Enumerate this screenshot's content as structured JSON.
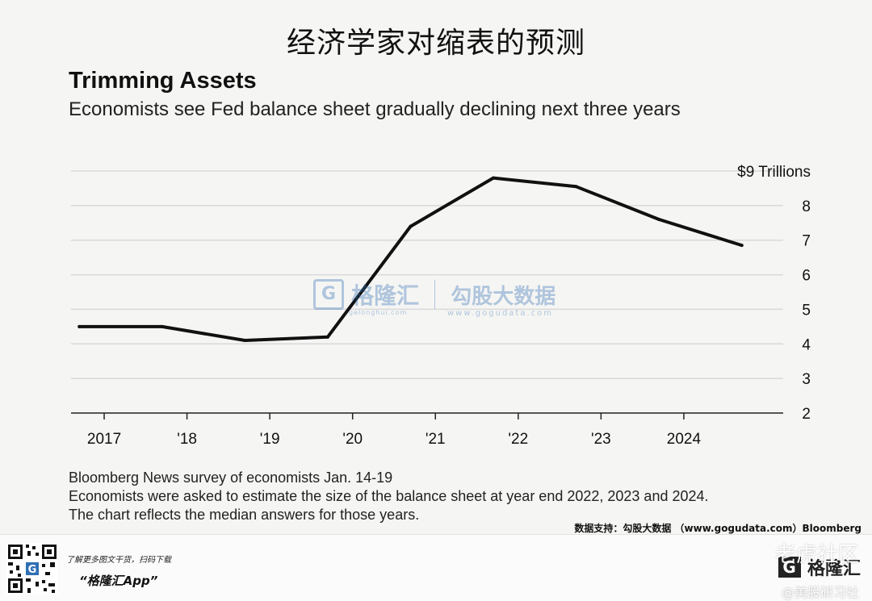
{
  "header": {
    "title": "经济学家对缩表的预测"
  },
  "chart": {
    "title": "Trimming Assets",
    "subtitle": "Economists see Fed balance sheet gradually declining next three years",
    "top_tick_label": "$9 Trillions",
    "notes": [
      "Bloomberg News survey of economists Jan. 14-19",
      "Economists were asked to estimate the size of the balance sheet at year end 2022, 2023 and 2024.",
      "The chart reflects the median answers for those years."
    ]
  },
  "chart_data": {
    "type": "line",
    "title": "Trimming Assets",
    "subtitle": "Economists see Fed balance sheet gradually declining next three years",
    "xlabel": "",
    "ylabel": "",
    "x_tick_labels": [
      "2017",
      "'18",
      "'19",
      "'20",
      "'21",
      "'22",
      "'23",
      "2024"
    ],
    "y_ticks": [
      2,
      3,
      4,
      5,
      6,
      7,
      8,
      9
    ],
    "y_tick_labels": [
      "2",
      "3",
      "4",
      "5",
      "6",
      "7",
      "8",
      "$9 Trillions"
    ],
    "ylim": [
      2,
      9
    ],
    "xlim": [
      2016.6,
      2025.2
    ],
    "grid": true,
    "line_color": "#111111",
    "series": [
      {
        "x": [
          2016.7,
          2017.7,
          2018.7,
          2019.7,
          2020.7,
          2021.7,
          2022.7,
          2023.7,
          2024.7
        ],
        "values": [
          4.5,
          4.5,
          4.1,
          4.2,
          7.4,
          8.8,
          8.55,
          7.6,
          6.85
        ]
      }
    ]
  },
  "credit": "数据支持：勾股大数据 （www.gogudata.com）Bloomberg",
  "watermark": {
    "mark": "G",
    "name": "格隆汇",
    "url1": "gelonghui.com",
    "name2": "勾股大数据",
    "url2": "www.gogudata.com"
  },
  "footer": {
    "cta": "了解更多图文干货，扫码下载",
    "app": "“格隆汇App”",
    "brand_mark": "G",
    "brand": "格隆汇",
    "community": "老虎社区",
    "author": "@美股研习社"
  },
  "colors": {
    "background": "#f5f5f3",
    "gridline": "#d9d9d9",
    "line": "#111111",
    "watermark": "#2f6fb5"
  }
}
